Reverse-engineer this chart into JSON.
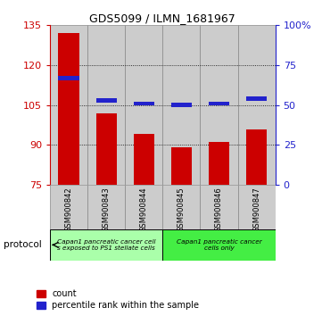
{
  "title": "GDS5099 / ILMN_1681967",
  "samples": [
    "GSM900842",
    "GSM900843",
    "GSM900844",
    "GSM900845",
    "GSM900846",
    "GSM900847"
  ],
  "count_values": [
    132,
    102,
    94,
    89,
    91,
    96
  ],
  "percentile_values": [
    67,
    53,
    51,
    50,
    51,
    54
  ],
  "ymin": 75,
  "ymax": 135,
  "yticks_left": [
    75,
    90,
    105,
    120,
    135
  ],
  "yticks_right": [
    0,
    25,
    50,
    75,
    100
  ],
  "bar_bottom": 75,
  "red_color": "#cc0000",
  "blue_color": "#2222cc",
  "group1_label": "Capan1 pancreatic cancer cell\ns exposed to PS1 stellate cells",
  "group2_label": "Capan1 pancreatic cancer\ncells only",
  "group1_indices": [
    0,
    1,
    2
  ],
  "group2_indices": [
    3,
    4,
    5
  ],
  "group1_color": "#aaffaa",
  "group2_color": "#44ee44",
  "left_axis_color": "#cc0000",
  "right_axis_color": "#2222cc",
  "legend_count_label": "count",
  "legend_percentile_label": "percentile rank within the sample",
  "protocol_label": "protocol",
  "bar_width": 0.55,
  "blue_bar_height": 1.5,
  "col_bg_color": "#cccccc",
  "col_edge_color": "#888888"
}
